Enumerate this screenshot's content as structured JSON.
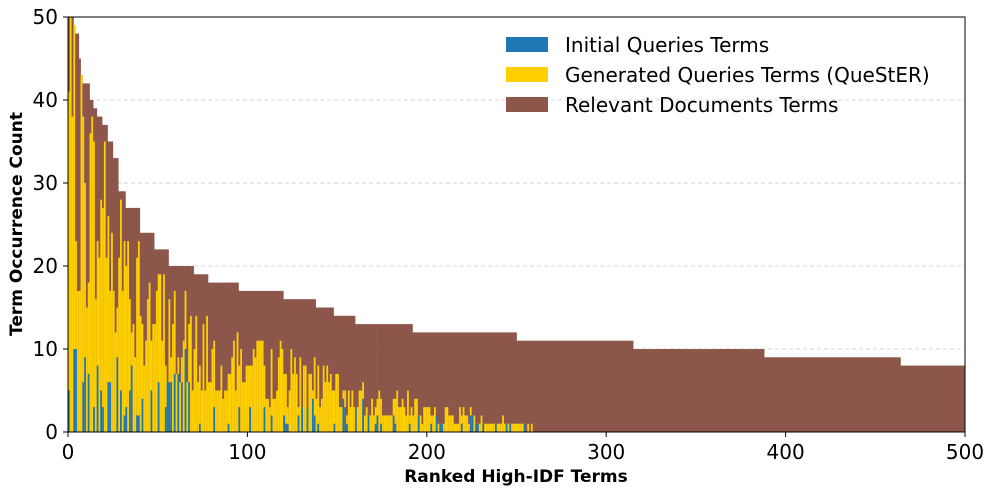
{
  "chart_data": {
    "type": "bar",
    "stacked": true,
    "xlabel": "Ranked High-IDF Terms",
    "ylabel": "Term Occurrence Count",
    "xlim": [
      0,
      500
    ],
    "ylim": [
      0,
      50
    ],
    "xticks": [
      0,
      100,
      200,
      300,
      400,
      500
    ],
    "yticks": [
      0,
      10,
      20,
      30,
      40,
      50
    ],
    "grid": "horizontal-dashed",
    "legend_placement": "top-right",
    "n_terms": 500,
    "series": [
      {
        "name": "Initial Queries Terms",
        "color": "#1f77b4"
      },
      {
        "name": "Generated Queries Terms (QueStER)",
        "color": "#ffd000"
      },
      {
        "name": "Relevant Documents Terms",
        "color": "#8c564b"
      }
    ],
    "total_count_profile": [
      {
        "from": 1,
        "to": 3,
        "value": 50
      },
      {
        "from": 4,
        "to": 4,
        "value": 49
      },
      {
        "from": 5,
        "to": 6,
        "value": 48
      },
      {
        "from": 7,
        "to": 7,
        "value": 45
      },
      {
        "from": 8,
        "to": 8,
        "value": 43
      },
      {
        "from": 9,
        "to": 12,
        "value": 42
      },
      {
        "from": 13,
        "to": 14,
        "value": 40
      },
      {
        "from": 15,
        "to": 16,
        "value": 39
      },
      {
        "from": 17,
        "to": 19,
        "value": 38
      },
      {
        "from": 20,
        "to": 22,
        "value": 37
      },
      {
        "from": 23,
        "to": 25,
        "value": 35
      },
      {
        "from": 26,
        "to": 28,
        "value": 33
      },
      {
        "from": 29,
        "to": 32,
        "value": 29
      },
      {
        "from": 33,
        "to": 40,
        "value": 27
      },
      {
        "from": 41,
        "to": 48,
        "value": 24
      },
      {
        "from": 49,
        "to": 56,
        "value": 22
      },
      {
        "from": 57,
        "to": 70,
        "value": 20
      },
      {
        "from": 71,
        "to": 78,
        "value": 19
      },
      {
        "from": 79,
        "to": 95,
        "value": 18
      },
      {
        "from": 96,
        "to": 120,
        "value": 17
      },
      {
        "from": 121,
        "to": 138,
        "value": 16
      },
      {
        "from": 139,
        "to": 148,
        "value": 15
      },
      {
        "from": 149,
        "to": 160,
        "value": 14
      },
      {
        "from": 161,
        "to": 192,
        "value": 13
      },
      {
        "from": 193,
        "to": 250,
        "value": 12
      },
      {
        "from": 251,
        "to": 315,
        "value": 11
      },
      {
        "from": 316,
        "to": 388,
        "value": 10
      },
      {
        "from": 389,
        "to": 464,
        "value": 9
      },
      {
        "from": 465,
        "to": 500,
        "value": 8
      }
    ]
  },
  "legend": {
    "items": [
      {
        "label": "Initial Queries Terms",
        "color": "#1f77b4"
      },
      {
        "label": "Generated Queries Terms (QueStER)",
        "color": "#ffd000"
      },
      {
        "label": "Relevant Documents Terms",
        "color": "#8c564b"
      }
    ]
  },
  "axes": {
    "x_ticks": [
      "0",
      "100",
      "200",
      "300",
      "400",
      "500"
    ],
    "y_ticks": [
      "0",
      "10",
      "20",
      "30",
      "40",
      "50"
    ],
    "x_title": "Ranked High-IDF Terms",
    "y_title": "Term Occurrence Count"
  }
}
